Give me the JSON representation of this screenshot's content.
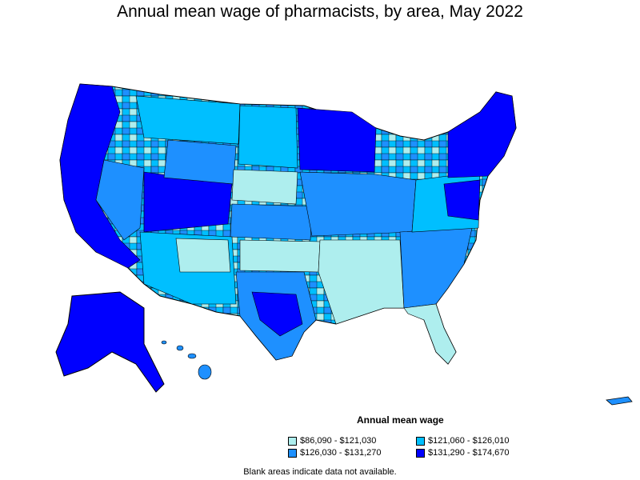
{
  "title": "Annual mean wage of pharmacists, by area, May 2022",
  "legend": {
    "title": "Annual mean wage",
    "items": [
      {
        "label": "$86,090 - $121,030",
        "color": "#aeeeee"
      },
      {
        "label": "$121,060 - $126,010",
        "color": "#00bfff"
      },
      {
        "label": "$126,030 - $131,270",
        "color": "#1e90ff"
      },
      {
        "label": "$131,290 - $174,670",
        "color": "#0000ff"
      }
    ]
  },
  "footnote": "Blank areas indicate data not available."
}
